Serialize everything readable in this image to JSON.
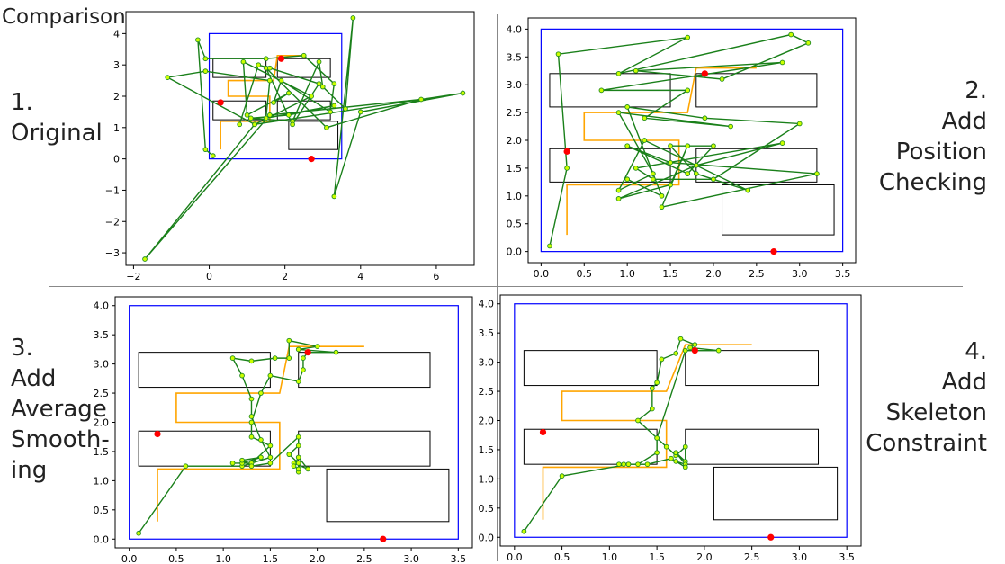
{
  "header": "Comparison:",
  "labels": {
    "p1": [
      "1.",
      "Original"
    ],
    "p2": [
      "2.",
      "Add",
      "Position",
      "Checking"
    ],
    "p3": [
      "3.",
      "Add",
      "Average",
      "Smooth-",
      "ing"
    ],
    "p4": [
      "4.",
      "Add",
      "Skeleton",
      "Constraint"
    ]
  },
  "colors": {
    "boundary": "#0000ff",
    "skeleton": "#ffa500",
    "path": "#1a801a",
    "node_face": "#ccff00",
    "node_edge": "#228b22",
    "marker": "#ff0000",
    "obstacle": "#000000"
  },
  "chart_data": [
    {
      "type": "line",
      "xlim": [
        -2.2,
        7.0
      ],
      "ylim": [
        -3.4,
        4.7
      ],
      "xticks": [
        -2,
        0,
        2,
        4,
        6
      ],
      "yticks": [
        -3,
        -2,
        -1,
        0,
        1,
        2,
        3,
        4
      ],
      "path": [
        [
          0.1,
          0.1
        ],
        [
          -0.1,
          0.3
        ],
        [
          -0.3,
          3.8
        ],
        [
          -0.1,
          3.2
        ],
        [
          1.5,
          3.2
        ],
        [
          2.5,
          3.3
        ],
        [
          3.3,
          2.4
        ],
        [
          3.2,
          1.5
        ],
        [
          1.9,
          2.5
        ],
        [
          1.7,
          1.8
        ],
        [
          2.1,
          2.1
        ],
        [
          1.0,
          1.4
        ],
        [
          0.9,
          3.1
        ],
        [
          2.7,
          2.0
        ],
        [
          1.2,
          1.1
        ],
        [
          -1.1,
          2.6
        ],
        [
          -0.1,
          2.8
        ],
        [
          1.6,
          2.5
        ],
        [
          1.5,
          1.3
        ],
        [
          3.3,
          1.7
        ],
        [
          2.1,
          1.4
        ],
        [
          1.1,
          1.3
        ],
        [
          2.2,
          1.2
        ],
        [
          2.9,
          3.1
        ],
        [
          3.0,
          2.3
        ],
        [
          3.6,
          1.6
        ],
        [
          3.8,
          4.5
        ],
        [
          3.3,
          -1.2
        ],
        [
          4.0,
          1.5
        ],
        [
          6.7,
          2.1
        ],
        [
          1.2,
          1.1
        ],
        [
          -1.7,
          -3.2
        ],
        [
          1.6,
          1.4
        ],
        [
          5.6,
          1.9
        ],
        [
          3.1,
          1.0
        ],
        [
          1.5,
          2.9
        ],
        [
          2.2,
          1.1
        ],
        [
          2.9,
          2.4
        ],
        [
          1.6,
          2.9
        ],
        [
          1.3,
          3.0
        ],
        [
          0.8,
          1.1
        ]
      ],
      "skeleton": [
        [
          0.3,
          0.3
        ],
        [
          0.3,
          1.2
        ],
        [
          1.6,
          1.2
        ],
        [
          1.6,
          2.0
        ],
        [
          0.5,
          2.0
        ],
        [
          0.5,
          2.5
        ],
        [
          1.7,
          2.5
        ],
        [
          1.8,
          3.3
        ],
        [
          2.5,
          3.3
        ]
      ],
      "markers": [
        [
          0.3,
          1.8
        ],
        [
          1.9,
          3.2
        ],
        [
          2.7,
          0.0
        ]
      ]
    },
    {
      "type": "line",
      "xlim": [
        -0.15,
        3.65
      ],
      "ylim": [
        -0.2,
        4.2
      ],
      "xticks": [
        0.0,
        0.5,
        1.0,
        1.5,
        2.0,
        2.5,
        3.0,
        3.5
      ],
      "yticks": [
        0.0,
        0.5,
        1.0,
        1.5,
        2.0,
        2.5,
        3.0,
        3.5,
        4.0
      ],
      "path": [
        [
          0.1,
          0.1
        ],
        [
          0.3,
          1.5
        ],
        [
          0.2,
          3.55
        ],
        [
          1.7,
          3.85
        ],
        [
          0.9,
          3.2
        ],
        [
          2.9,
          3.9
        ],
        [
          3.1,
          3.75
        ],
        [
          2.1,
          3.1
        ],
        [
          1.1,
          3.25
        ],
        [
          2.8,
          3.4
        ],
        [
          0.7,
          2.9
        ],
        [
          1.7,
          2.9
        ],
        [
          1.2,
          2.4
        ],
        [
          2.2,
          2.25
        ],
        [
          0.9,
          2.5
        ],
        [
          1.3,
          1.4
        ],
        [
          0.9,
          1.1
        ],
        [
          1.2,
          2.0
        ],
        [
          2.4,
          1.1
        ],
        [
          1.8,
          1.4
        ],
        [
          1.5,
          1.9
        ],
        [
          2.0,
          1.9
        ],
        [
          1.7,
          1.4
        ],
        [
          1.0,
          1.9
        ],
        [
          1.5,
          1.6
        ],
        [
          3.2,
          1.4
        ],
        [
          1.4,
          0.8
        ],
        [
          1.7,
          1.9
        ],
        [
          1.5,
          1.2
        ],
        [
          0.9,
          0.95
        ],
        [
          1.8,
          1.55
        ],
        [
          2.8,
          1.95
        ],
        [
          1.1,
          1.5
        ],
        [
          1.3,
          1.3
        ],
        [
          2.0,
          1.3
        ],
        [
          3.0,
          2.3
        ],
        [
          1.9,
          2.4
        ],
        [
          1.0,
          2.6
        ],
        [
          1.4,
          1.0
        ],
        [
          1.0,
          1.3
        ]
      ],
      "skeleton": [
        [
          0.3,
          0.3
        ],
        [
          0.3,
          1.2
        ],
        [
          1.6,
          1.2
        ],
        [
          1.6,
          2.0
        ],
        [
          0.5,
          2.0
        ],
        [
          0.5,
          2.5
        ],
        [
          1.7,
          2.5
        ],
        [
          1.8,
          3.3
        ],
        [
          2.5,
          3.3
        ]
      ],
      "markers": [
        [
          0.3,
          1.8
        ],
        [
          1.9,
          3.2
        ],
        [
          2.7,
          0.0
        ]
      ]
    },
    {
      "type": "line",
      "xlim": [
        -0.15,
        3.65
      ],
      "ylim": [
        -0.15,
        4.15
      ],
      "xticks": [
        0.0,
        0.5,
        1.0,
        1.5,
        2.0,
        2.5,
        3.0,
        3.5
      ],
      "yticks": [
        0.0,
        0.5,
        1.0,
        1.5,
        2.0,
        2.5,
        3.0,
        3.5,
        4.0
      ],
      "path": [
        [
          0.1,
          0.1
        ],
        [
          0.6,
          1.25
        ],
        [
          1.2,
          1.25
        ],
        [
          1.5,
          1.4
        ],
        [
          1.4,
          1.7
        ],
        [
          1.3,
          2.1
        ],
        [
          1.3,
          2.4
        ],
        [
          1.2,
          2.8
        ],
        [
          1.1,
          3.1
        ],
        [
          1.3,
          3.05
        ],
        [
          1.55,
          3.1
        ],
        [
          1.7,
          3.1
        ],
        [
          1.7,
          3.4
        ],
        [
          2.0,
          3.3
        ],
        [
          1.8,
          3.25
        ],
        [
          2.2,
          3.2
        ],
        [
          1.9,
          3.2
        ],
        [
          1.85,
          3.1
        ],
        [
          1.85,
          2.9
        ],
        [
          1.8,
          2.7
        ],
        [
          1.5,
          2.8
        ],
        [
          1.4,
          2.5
        ],
        [
          1.3,
          2.0
        ],
        [
          1.3,
          1.75
        ],
        [
          1.5,
          1.6
        ],
        [
          1.3,
          1.3
        ],
        [
          1.1,
          1.3
        ],
        [
          1.2,
          1.3
        ],
        [
          1.4,
          1.4
        ],
        [
          1.2,
          1.35
        ],
        [
          1.3,
          1.25
        ],
        [
          1.5,
          1.3
        ],
        [
          1.8,
          1.75
        ],
        [
          1.8,
          1.6
        ],
        [
          1.7,
          1.45
        ],
        [
          1.8,
          1.3
        ],
        [
          1.8,
          1.15
        ],
        [
          1.75,
          1.3
        ],
        [
          1.9,
          1.2
        ],
        [
          1.8,
          1.4
        ],
        [
          1.75,
          1.25
        ],
        [
          1.8,
          1.2
        ]
      ],
      "skeleton": [
        [
          0.3,
          0.3
        ],
        [
          0.3,
          1.2
        ],
        [
          1.6,
          1.2
        ],
        [
          1.6,
          2.0
        ],
        [
          0.5,
          2.0
        ],
        [
          0.5,
          2.5
        ],
        [
          1.6,
          2.5
        ],
        [
          1.7,
          3.3
        ],
        [
          2.5,
          3.3
        ]
      ],
      "markers": [
        [
          0.3,
          1.8
        ],
        [
          1.9,
          3.2
        ],
        [
          2.7,
          0.0
        ]
      ]
    },
    {
      "type": "line",
      "xlim": [
        -0.15,
        3.65
      ],
      "ylim": [
        -0.15,
        4.15
      ],
      "xticks": [
        0.0,
        0.5,
        1.0,
        1.5,
        2.0,
        2.5,
        3.0,
        3.5
      ],
      "yticks": [
        0.0,
        0.5,
        1.0,
        1.5,
        2.0,
        2.5,
        3.0,
        3.5,
        4.0
      ],
      "path": [
        [
          0.1,
          0.1
        ],
        [
          0.5,
          1.05
        ],
        [
          1.2,
          1.25
        ],
        [
          1.3,
          1.25
        ],
        [
          1.5,
          1.45
        ],
        [
          1.5,
          1.7
        ],
        [
          1.3,
          2.0
        ],
        [
          1.45,
          2.2
        ],
        [
          1.45,
          2.55
        ],
        [
          1.5,
          2.65
        ],
        [
          1.55,
          3.05
        ],
        [
          1.7,
          3.15
        ],
        [
          1.75,
          3.4
        ],
        [
          1.9,
          3.3
        ],
        [
          1.85,
          3.25
        ],
        [
          2.15,
          3.2
        ],
        [
          1.9,
          3.2
        ],
        [
          1.8,
          3.2
        ],
        [
          1.5,
          1.7
        ],
        [
          1.6,
          1.55
        ],
        [
          1.7,
          1.4
        ],
        [
          1.8,
          1.55
        ],
        [
          1.8,
          1.3
        ],
        [
          1.7,
          1.45
        ],
        [
          1.8,
          1.25
        ],
        [
          1.7,
          1.3
        ],
        [
          1.8,
          1.2
        ],
        [
          1.65,
          1.35
        ],
        [
          1.4,
          1.25
        ],
        [
          1.2,
          1.25
        ],
        [
          1.15,
          1.25
        ],
        [
          1.1,
          1.25
        ]
      ],
      "skeleton": [
        [
          0.3,
          0.3
        ],
        [
          0.3,
          1.2
        ],
        [
          1.6,
          1.2
        ],
        [
          1.6,
          2.0
        ],
        [
          0.5,
          2.0
        ],
        [
          0.5,
          2.5
        ],
        [
          1.6,
          2.5
        ],
        [
          1.8,
          3.3
        ],
        [
          2.5,
          3.3
        ]
      ],
      "markers": [
        [
          0.3,
          1.8
        ],
        [
          1.9,
          3.2
        ],
        [
          2.7,
          0.0
        ]
      ]
    }
  ]
}
